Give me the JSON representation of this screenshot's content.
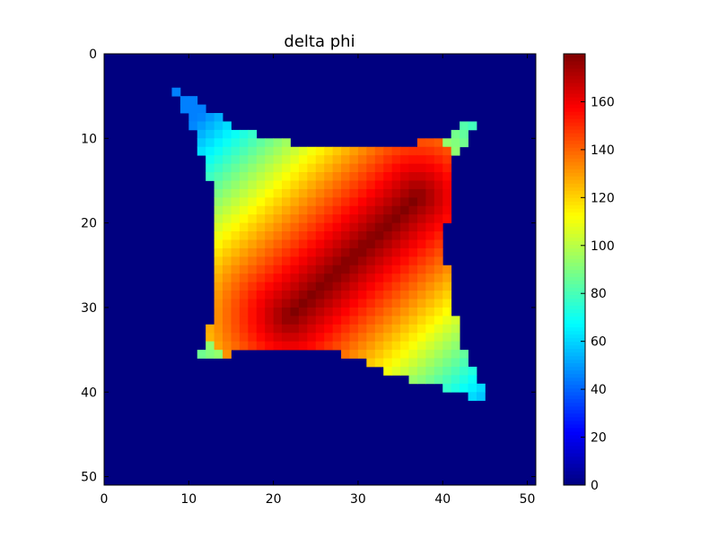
{
  "chart_data": {
    "type": "heatmap",
    "title": "delta phi",
    "xlabel": "",
    "ylabel": "",
    "grid_shape": [
      51,
      51
    ],
    "xlim": [
      0,
      51
    ],
    "ylim": [
      51,
      0
    ],
    "x_ticks": [
      0,
      10,
      20,
      30,
      40,
      50
    ],
    "y_ticks": [
      0,
      10,
      20,
      30,
      40,
      50
    ],
    "colormap": "jet",
    "color_range": [
      0,
      180
    ],
    "colorbar_ticks": [
      0,
      20,
      40,
      60,
      80,
      100,
      120,
      140,
      160
    ],
    "background_value": 0,
    "grid": false,
    "colorbar_position": "right",
    "shape_outline": [
      [
        8,
        3
      ],
      [
        10,
        5
      ],
      [
        13,
        7
      ],
      [
        16,
        9
      ],
      [
        20,
        10
      ],
      [
        24,
        11
      ],
      [
        30,
        11
      ],
      [
        35,
        11
      ],
      [
        40,
        10
      ],
      [
        43,
        8
      ],
      [
        44,
        8
      ],
      [
        43,
        11
      ],
      [
        41,
        13
      ],
      [
        41,
        18
      ],
      [
        40,
        22
      ],
      [
        41,
        28
      ],
      [
        42,
        34
      ],
      [
        44,
        38
      ],
      [
        46,
        40
      ],
      [
        45,
        41
      ],
      [
        42,
        40
      ],
      [
        38,
        39
      ],
      [
        34,
        38
      ],
      [
        30,
        36
      ],
      [
        26,
        35
      ],
      [
        22,
        35
      ],
      [
        17,
        35
      ],
      [
        14,
        36
      ],
      [
        12,
        36
      ],
      [
        11,
        37
      ],
      [
        12,
        34
      ],
      [
        13,
        31
      ],
      [
        13,
        26
      ],
      [
        13,
        21
      ],
      [
        13,
        16
      ],
      [
        12,
        13
      ],
      [
        11,
        10
      ],
      [
        10,
        8
      ],
      [
        9,
        6
      ],
      [
        8,
        4
      ]
    ],
    "values_described": "Peak ~180 along diagonal ridge from (37,17) to (22,31); decreasing to ~100 at shape edges; background 0."
  }
}
